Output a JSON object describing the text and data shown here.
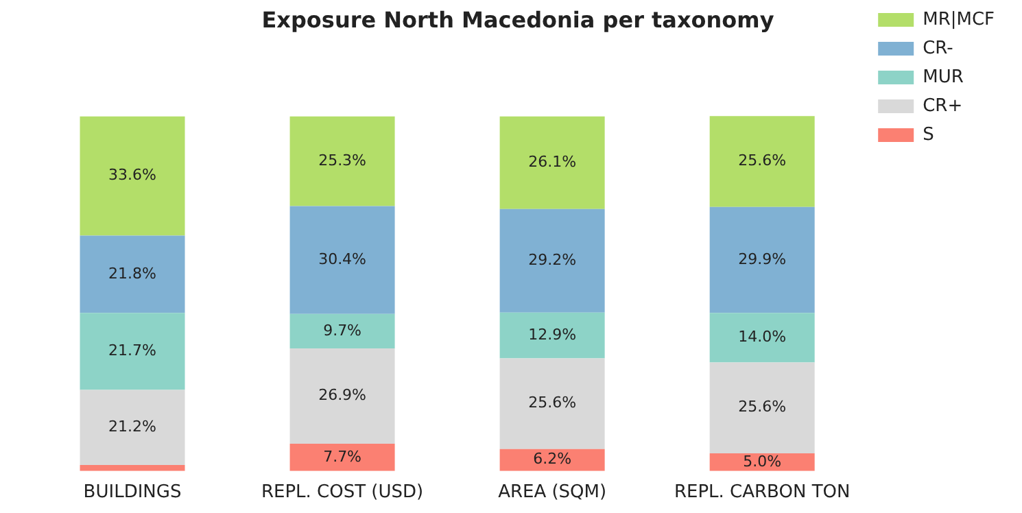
{
  "chart_data": {
    "type": "bar",
    "title": "Exposure North Macedonia per taxonomy",
    "stacked": true,
    "legend": "top right",
    "grid": false,
    "tick_labels": "x",
    "categories": [
      "BUILDINGS",
      "REPL. COST (USD)",
      "AREA (SQM)",
      "REPL. CARBON TON"
    ],
    "series": [
      {
        "name": "S",
        "color": "#fb8072",
        "values": [
          1.7,
          7.7,
          6.2,
          5.0
        ],
        "value_labels": [
          null,
          "7.7%",
          "6.2%",
          "5.0%"
        ]
      },
      {
        "name": "CR+",
        "color": "#d9d9d9",
        "values": [
          21.2,
          26.9,
          25.6,
          25.6
        ],
        "value_labels": [
          "21.2%",
          "26.9%",
          "25.6%",
          "25.6%"
        ]
      },
      {
        "name": "MUR",
        "color": "#8dd3c7",
        "values": [
          21.7,
          9.7,
          12.9,
          14.0
        ],
        "value_labels": [
          "21.7%",
          "9.7%",
          "12.9%",
          "14.0%"
        ]
      },
      {
        "name": "CR-",
        "color": "#80b1d3",
        "values": [
          21.8,
          30.4,
          29.2,
          29.9
        ],
        "value_labels": [
          "21.8%",
          "30.4%",
          "29.2%",
          "29.9%"
        ]
      },
      {
        "name": "MR|MCF",
        "color": "#b3de69",
        "values": [
          33.6,
          25.3,
          26.1,
          25.6
        ],
        "value_labels": [
          "33.6%",
          "25.3%",
          "26.1%",
          "25.6%"
        ]
      }
    ]
  }
}
